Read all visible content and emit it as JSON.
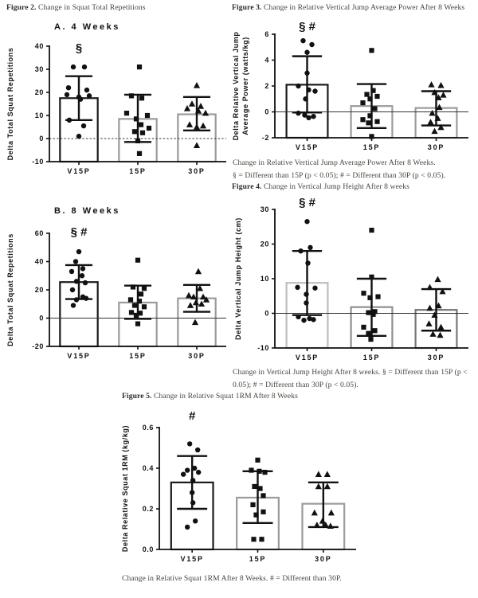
{
  "captions": {
    "fig2": {
      "label": "Figure 2.",
      "text": " Change in Squat Total Repetitions"
    },
    "fig3": {
      "label": "Figure 3.",
      "text": " Change in Relative Vertical Jump Average Power After 8 Weeks"
    },
    "fig4": {
      "label": "Figure 4.",
      "text": " Change in Vertical Jump Height After 8 weeks"
    },
    "fig5": {
      "label": "Figure 5.",
      "text": " Change in Relative Squat 1RM After 8 Weeks"
    }
  },
  "footnotes": {
    "fig3_line1": "Change in Relative Vertical Jump Average Power After 8 Weeks.",
    "fig3_line2": "§ = Different than 15P (p < 0.05); # = Different than 30P (p < 0.05).",
    "fig4": "Change in Vertical Jump Height After 8 weeks. § = Different than 15P (p < 0.05); # = Different than 30P (p < 0.05).",
    "fig5": "Change in Relative Squat 1RM After 8 Weeks. # = Different than 30P."
  },
  "chart_data": [
    {
      "id": "fig2a",
      "type": "bar",
      "title": "A. 4 Weeks",
      "ylabel_lines": [
        "Delta Total Squat Repetitions"
      ],
      "ylim": [
        -10,
        40
      ],
      "yticks": [
        -10,
        0,
        10,
        20,
        30,
        40
      ],
      "ytick_labels": [
        "-10",
        "0",
        "10",
        "20",
        "30",
        "40"
      ],
      "categories": [
        "V15P",
        "15P",
        "30P"
      ],
      "sig": "§",
      "sig_dy": 7,
      "zero_line": "dotted",
      "groups": [
        {
          "name": "V15P",
          "marker": "circle",
          "bar_color": "#1a1a1a",
          "mean": 17.5,
          "err_hi": 27,
          "err_lo": 8,
          "points": [
            [
              31,
              -7
            ],
            [
              31,
              7
            ],
            [
              22,
              -13
            ],
            [
              21,
              10
            ],
            [
              19,
              -15
            ],
            [
              18.5,
              13
            ],
            [
              18,
              0
            ],
            [
              17,
              2
            ],
            [
              8,
              -12
            ],
            [
              5.5,
              6
            ],
            [
              1,
              0
            ]
          ]
        },
        {
          "name": "15P",
          "marker": "square",
          "bar_color": "#9b9b9b",
          "mean": 8.5,
          "err_hi": 19,
          "err_lo": -1.5,
          "points": [
            [
              31,
              2
            ],
            [
              18.5,
              -8
            ],
            [
              17.5,
              5
            ],
            [
              11,
              -14
            ],
            [
              10,
              12
            ],
            [
              8.5,
              -2
            ],
            [
              6,
              4
            ],
            [
              4.5,
              14
            ],
            [
              3,
              -4
            ],
            [
              2.5,
              6
            ],
            [
              -1,
              0
            ],
            [
              -6.5,
              2
            ]
          ]
        },
        {
          "name": "30P",
          "marker": "triangle",
          "bar_color": "#9b9b9b",
          "mean": 10.5,
          "err_hi": 18,
          "err_lo": 3.5,
          "points": [
            [
              23,
              0
            ],
            [
              15,
              -6
            ],
            [
              14,
              5
            ],
            [
              13,
              -12
            ],
            [
              12,
              2
            ],
            [
              11,
              11
            ],
            [
              6,
              -9
            ],
            [
              5.5,
              8
            ],
            [
              5,
              0
            ],
            [
              -3,
              0
            ]
          ]
        }
      ]
    },
    {
      "id": "fig2b",
      "type": "bar",
      "title": "B. 8 Weeks",
      "ylabel_lines": [
        "Delta Total Squat Repetitions"
      ],
      "ylim": [
        -20,
        60
      ],
      "yticks": [
        -20,
        0,
        20,
        40,
        60
      ],
      "ytick_labels": [
        "-20",
        "0",
        "20",
        "40",
        "60"
      ],
      "categories": [
        "V15P",
        "15P",
        "30P"
      ],
      "sig": "§ #",
      "sig_dy": 3,
      "zero_line": "solid",
      "groups": [
        {
          "name": "V15P",
          "marker": "circle",
          "bar_color": "#1a1a1a",
          "mean": 25.5,
          "err_hi": 37.5,
          "err_lo": 13.5,
          "points": [
            [
              47,
              0
            ],
            [
              40,
              -4
            ],
            [
              35,
              5
            ],
            [
              33,
              -9
            ],
            [
              30,
              4
            ],
            [
              26,
              -3
            ],
            [
              25,
              8
            ],
            [
              20,
              -8
            ],
            [
              15,
              5
            ],
            [
              14,
              9
            ],
            [
              13,
              -3
            ],
            [
              9,
              -7
            ]
          ]
        },
        {
          "name": "15P",
          "marker": "square",
          "bar_color": "#9b9b9b",
          "mean": 11,
          "err_hi": 23,
          "err_lo": -0.5,
          "points": [
            [
              41,
              0
            ],
            [
              22,
              -6
            ],
            [
              21,
              8
            ],
            [
              17,
              4
            ],
            [
              13,
              -9
            ],
            [
              12,
              2
            ],
            [
              9,
              -4
            ],
            [
              8,
              8
            ],
            [
              4,
              -8
            ],
            [
              3.5,
              3
            ],
            [
              2,
              -2
            ],
            [
              -4,
              0
            ]
          ]
        },
        {
          "name": "30P",
          "marker": "triangle",
          "bar_color": "#9b9b9b",
          "mean": 14,
          "err_hi": 23.5,
          "err_lo": 4.5,
          "points": [
            [
              33,
              2
            ],
            [
              21,
              4
            ],
            [
              16,
              -10
            ],
            [
              15,
              -4
            ],
            [
              15,
              8
            ],
            [
              13,
              12
            ],
            [
              11,
              -1
            ],
            [
              10,
              6
            ],
            [
              9,
              -8
            ],
            [
              -3,
              -2
            ]
          ]
        }
      ]
    },
    {
      "id": "fig3",
      "type": "bar",
      "title": "",
      "ylabel_lines": [
        "Delta Relative Vertical Jump",
        "Average Power (watts/kg)"
      ],
      "ylim": [
        -2,
        6
      ],
      "yticks": [
        -2,
        0,
        2,
        4,
        6
      ],
      "ytick_labels": [
        "-2",
        "0",
        "2",
        "4",
        "6"
      ],
      "categories": [
        "V15P",
        "15P",
        "30P"
      ],
      "sig": "§ #",
      "sig_dy": -5,
      "zero_line": "solid",
      "groups": [
        {
          "name": "V15P",
          "marker": "circle",
          "bar_color": "#1a1a1a",
          "mean": 2.1,
          "err_hi": 4.3,
          "err_lo": -0.05,
          "points": [
            [
              5.5,
              -5
            ],
            [
              5.2,
              6
            ],
            [
              4.6,
              0
            ],
            [
              3,
              0
            ],
            [
              2,
              -11
            ],
            [
              1.7,
              2
            ],
            [
              1.6,
              10
            ],
            [
              1,
              -2
            ],
            [
              -0.1,
              -11
            ],
            [
              -0.25,
              -3
            ],
            [
              -0.35,
              8
            ],
            [
              -0.45,
              2
            ]
          ]
        },
        {
          "name": "15P",
          "marker": "square",
          "bar_color": "#9b9b9b",
          "mean": 0.45,
          "err_hi": 2.15,
          "err_lo": -1.25,
          "points": [
            [
              4.75,
              0
            ],
            [
              1.65,
              2
            ],
            [
              1.35,
              -6
            ],
            [
              1.2,
              7
            ],
            [
              1,
              -2
            ],
            [
              0.7,
              -11
            ],
            [
              0.25,
              4
            ],
            [
              -0.3,
              -2
            ],
            [
              -0.6,
              -11
            ],
            [
              -0.75,
              7
            ],
            [
              -0.85,
              -4
            ],
            [
              -1.9,
              0
            ]
          ]
        },
        {
          "name": "30P",
          "marker": "triangle",
          "bar_color": "#9b9b9b",
          "mean": 0.3,
          "err_hi": 1.6,
          "err_lo": -1.05,
          "points": [
            [
              2.1,
              -6
            ],
            [
              2.05,
              6
            ],
            [
              1.5,
              -2
            ],
            [
              1.3,
              9
            ],
            [
              1.1,
              3
            ],
            [
              0.35,
              4
            ],
            [
              -0.1,
              -5
            ],
            [
              -0.5,
              2
            ],
            [
              -0.8,
              -7
            ],
            [
              -1.2,
              6
            ],
            [
              -1.5,
              -2
            ]
          ]
        }
      ]
    },
    {
      "id": "fig4",
      "type": "bar",
      "title": "",
      "ylabel_lines": [
        "Delta Vertical Jump Height (cm)"
      ],
      "ylim": [
        -10,
        30
      ],
      "yticks": [
        -10,
        0,
        10,
        20,
        30
      ],
      "ytick_labels": [
        "-10",
        "0",
        "10",
        "20",
        "30"
      ],
      "categories": [
        "V15P",
        "15P",
        "30P"
      ],
      "sig": "§ #",
      "sig_dy": -4,
      "zero_line": "solid",
      "groups": [
        {
          "name": "V15P",
          "marker": "circle",
          "bar_color": "#bdbdbd",
          "mean": 8.8,
          "err_hi": 18,
          "err_lo": -0.5,
          "points": [
            [
              26.5,
              0
            ],
            [
              19,
              4
            ],
            [
              18,
              -8
            ],
            [
              14.5,
              1
            ],
            [
              7.5,
              -12
            ],
            [
              7.3,
              10
            ],
            [
              5.5,
              -1
            ],
            [
              3,
              -1
            ],
            [
              -1,
              -11
            ],
            [
              -1.5,
              3
            ],
            [
              -2,
              -4
            ],
            [
              -1.8,
              8
            ]
          ]
        },
        {
          "name": "15P",
          "marker": "square",
          "bar_color": "#8f8f8f",
          "mean": 1.8,
          "err_hi": 10,
          "err_lo": -6.5,
          "points": [
            [
              24,
              0
            ],
            [
              10.5,
              0
            ],
            [
              5.8,
              -10
            ],
            [
              4.8,
              8
            ],
            [
              4.5,
              -2
            ],
            [
              0.5,
              4
            ],
            [
              0.2,
              -4
            ],
            [
              -0.3,
              2
            ],
            [
              -4,
              -10
            ],
            [
              -5,
              4
            ],
            [
              -5.8,
              -4
            ],
            [
              -7.5,
              -1
            ]
          ]
        },
        {
          "name": "30P",
          "marker": "triangle",
          "bar_color": "#777777",
          "mean": 1,
          "err_hi": 7,
          "err_lo": -5,
          "points": [
            [
              9.8,
              2
            ],
            [
              7.5,
              -8
            ],
            [
              6.3,
              8
            ],
            [
              2.2,
              3
            ],
            [
              1.5,
              -8
            ],
            [
              -0.5,
              -2
            ],
            [
              -3,
              -9
            ],
            [
              -4,
              6
            ],
            [
              -6,
              -4
            ],
            [
              -6.3,
              5
            ]
          ]
        }
      ]
    },
    {
      "id": "fig5",
      "type": "bar",
      "title": "",
      "ylabel_lines": [
        "Delta Relative Squat 1RM (kg/kg)"
      ],
      "ylim": [
        0,
        0.6
      ],
      "yticks": [
        0,
        0.2,
        0.4,
        0.6
      ],
      "ytick_labels": [
        "0.0",
        "0.2",
        "0.4",
        "0.6"
      ],
      "categories": [
        "V15P",
        "15P",
        "30P"
      ],
      "sig": "#",
      "sig_dy": -10,
      "zero_line": "none",
      "groups": [
        {
          "name": "V15P",
          "marker": "circle",
          "bar_color": "#1a1a1a",
          "mean": 0.33,
          "err_hi": 0.46,
          "err_lo": 0.2,
          "points": [
            [
              0.52,
              -3
            ],
            [
              0.49,
              7
            ],
            [
              0.4,
              3
            ],
            [
              0.39,
              -6
            ],
            [
              0.38,
              8
            ],
            [
              0.37,
              -11
            ],
            [
              0.34,
              1
            ],
            [
              0.28,
              0
            ],
            [
              0.23,
              1
            ],
            [
              0.14,
              4
            ],
            [
              0.11,
              -6
            ]
          ]
        },
        {
          "name": "15P",
          "marker": "square",
          "bar_color": "#9b9b9b",
          "mean": 0.255,
          "err_hi": 0.385,
          "err_lo": 0.13,
          "points": [
            [
              0.44,
              0
            ],
            [
              0.39,
              -8
            ],
            [
              0.385,
              2
            ],
            [
              0.38,
              9
            ],
            [
              0.31,
              -4
            ],
            [
              0.3,
              3
            ],
            [
              0.265,
              7
            ],
            [
              0.22,
              -6
            ],
            [
              0.185,
              7
            ],
            [
              0.17,
              -2
            ],
            [
              0.05,
              -5
            ],
            [
              0.05,
              5
            ]
          ]
        },
        {
          "name": "30P",
          "marker": "triangle",
          "bar_color": "#9b9b9b",
          "mean": 0.225,
          "err_hi": 0.33,
          "err_lo": 0.11,
          "points": [
            [
              0.37,
              -6
            ],
            [
              0.37,
              5
            ],
            [
              0.31,
              -6
            ],
            [
              0.31,
              5
            ],
            [
              0.18,
              -11
            ],
            [
              0.18,
              10
            ],
            [
              0.14,
              -1
            ],
            [
              0.12,
              -8
            ],
            [
              0.12,
              3
            ],
            [
              0.115,
              9
            ]
          ]
        }
      ]
    }
  ]
}
